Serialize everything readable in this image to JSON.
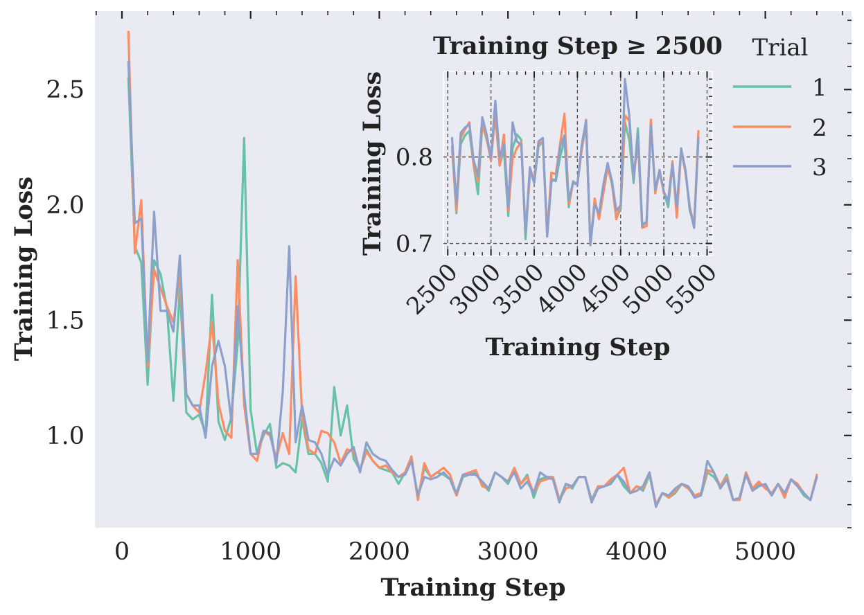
{
  "colors": {
    "background": "#eaeaf2",
    "trial_1": "#66c2a5",
    "trial_2": "#fc8d62",
    "trial_3": "#8da0cb",
    "grid": "#555555"
  },
  "chart_data": [
    {
      "type": "line",
      "title": "",
      "xlabel": "Training Step",
      "ylabel": "Training Loss",
      "xlim": [
        -210,
        5670
      ],
      "ylim": [
        0.6,
        2.84
      ],
      "xticks": [
        0,
        1000,
        2000,
        3000,
        4000,
        5000
      ],
      "xtick_labels": [
        "0",
        "1000",
        "2000",
        "3000",
        "4000",
        "5000"
      ],
      "yticks": [
        1.0,
        1.5,
        2.0,
        2.5
      ],
      "ytick_labels": [
        "1.0",
        "1.5",
        "2.0",
        "2.5"
      ],
      "grid": false,
      "x": [
        50,
        100,
        150,
        200,
        250,
        300,
        350,
        400,
        450,
        500,
        550,
        600,
        650,
        700,
        750,
        800,
        850,
        900,
        950,
        1000,
        1050,
        1100,
        1150,
        1200,
        1250,
        1300,
        1350,
        1400,
        1450,
        1500,
        1550,
        1600,
        1650,
        1700,
        1750,
        1800,
        1850,
        1900,
        1950,
        2000,
        2050,
        2100,
        2150,
        2200,
        2250,
        2300,
        2350,
        2400,
        2450,
        2500,
        2550,
        2600,
        2650,
        2700,
        2750,
        2800,
        2850,
        2900,
        2950,
        3000,
        3050,
        3100,
        3150,
        3200,
        3250,
        3300,
        3350,
        3400,
        3450,
        3500,
        3550,
        3600,
        3650,
        3700,
        3750,
        3800,
        3850,
        3900,
        3950,
        4000,
        4050,
        4100,
        4150,
        4200,
        4250,
        4300,
        4350,
        4400,
        4450,
        4500,
        4550,
        4600,
        4650,
        4700,
        4750,
        4800,
        4850,
        4900,
        4950,
        5000,
        5050,
        5100,
        5150,
        5200,
        5250,
        5300,
        5350,
        5400
      ],
      "series": [
        {
          "name": "1",
          "values": [
            2.55,
            1.82,
            1.75,
            1.22,
            1.76,
            1.7,
            1.55,
            1.15,
            1.64,
            1.1,
            1.07,
            1.09,
            1.01,
            1.61,
            1.06,
            0.98,
            1.08,
            1.4,
            2.29,
            1.11,
            0.92,
            1.0,
            1.05,
            0.86,
            0.88,
            0.87,
            0.84,
            1.07,
            0.92,
            0.92,
            0.88,
            0.8,
            1.21,
            1.0,
            1.13,
            0.9,
            0.85,
            0.94,
            0.89,
            0.86,
            0.85,
            0.84,
            0.79,
            0.84,
            0.9,
            0.73,
            0.86,
            0.82,
            0.84,
            0.83,
            0.81,
            0.74,
            0.82,
            0.83,
            0.84,
            0.79,
            0.76,
            0.84,
            0.82,
            0.79,
            0.85,
            0.79,
            0.83,
            0.73,
            0.81,
            0.82,
            0.82,
            0.72,
            0.79,
            0.77,
            0.82,
            0.82,
            0.72,
            0.78,
            0.78,
            0.8,
            0.83,
            0.78,
            0.75,
            0.78,
            0.76,
            0.83,
            0.7,
            0.75,
            0.73,
            0.75,
            0.79,
            0.78,
            0.74,
            0.74,
            0.84,
            0.82,
            0.78,
            0.83,
            0.72,
            0.73,
            0.84,
            0.77,
            0.79,
            0.78,
            0.74,
            0.79,
            0.74,
            0.81,
            0.78,
            0.74,
            0.72,
            0.82
          ]
        },
        {
          "name": "2",
          "values": [
            2.75,
            1.79,
            2.02,
            1.3,
            1.72,
            1.64,
            1.56,
            1.49,
            1.7,
            1.18,
            1.13,
            1.1,
            1.27,
            1.49,
            1.14,
            1.02,
            0.99,
            1.76,
            1.13,
            0.92,
            0.89,
            1.02,
            1.0,
            0.9,
            1.01,
            0.92,
            1.69,
            1.09,
            0.94,
            0.92,
            1.02,
            1.01,
            0.97,
            0.88,
            0.94,
            0.93,
            0.85,
            0.93,
            0.89,
            0.86,
            0.87,
            0.84,
            0.82,
            0.84,
            0.91,
            0.72,
            0.88,
            0.82,
            0.84,
            0.86,
            0.83,
            0.74,
            0.83,
            0.84,
            0.85,
            0.78,
            0.77,
            0.84,
            0.82,
            0.8,
            0.86,
            0.79,
            0.82,
            0.75,
            0.8,
            0.81,
            0.82,
            0.72,
            0.77,
            0.78,
            0.82,
            0.82,
            0.71,
            0.78,
            0.78,
            0.81,
            0.83,
            0.86,
            0.75,
            0.78,
            0.77,
            0.84,
            0.7,
            0.75,
            0.73,
            0.76,
            0.79,
            0.77,
            0.74,
            0.75,
            0.85,
            0.84,
            0.78,
            0.82,
            0.72,
            0.72,
            0.84,
            0.77,
            0.8,
            0.77,
            0.75,
            0.79,
            0.73,
            0.81,
            0.79,
            0.75,
            0.72,
            0.83
          ]
        },
        {
          "name": "3",
          "values": [
            2.62,
            1.92,
            1.94,
            1.32,
            1.97,
            1.54,
            1.54,
            1.45,
            1.78,
            1.18,
            1.13,
            1.13,
            0.99,
            1.3,
            1.41,
            1.3,
            1.06,
            1.56,
            1.18,
            0.92,
            0.92,
            1.02,
            1.01,
            0.88,
            1.19,
            1.82,
            0.97,
            1.13,
            0.98,
            0.97,
            0.92,
            0.83,
            0.9,
            0.87,
            0.92,
            0.95,
            0.84,
            0.97,
            0.92,
            0.9,
            0.89,
            0.85,
            0.82,
            0.83,
            0.89,
            0.74,
            0.82,
            0.81,
            0.82,
            0.84,
            0.81,
            0.75,
            0.83,
            0.83,
            0.83,
            0.8,
            0.77,
            0.84,
            0.82,
            0.8,
            0.84,
            0.77,
            0.8,
            0.75,
            0.84,
            0.82,
            0.81,
            0.71,
            0.79,
            0.78,
            0.82,
            0.82,
            0.71,
            0.77,
            0.78,
            0.79,
            0.83,
            0.8,
            0.75,
            0.76,
            0.78,
            0.84,
            0.69,
            0.75,
            0.74,
            0.77,
            0.79,
            0.78,
            0.73,
            0.74,
            0.89,
            0.84,
            0.77,
            0.81,
            0.72,
            0.73,
            0.83,
            0.76,
            0.78,
            0.79,
            0.74,
            0.79,
            0.75,
            0.81,
            0.78,
            0.75,
            0.72,
            0.82
          ]
        }
      ]
    },
    {
      "type": "line",
      "title": "Training Step ≥ 2500",
      "xlabel": "Training Step",
      "ylabel": "Training Loss",
      "xlim": [
        2450,
        5560
      ],
      "ylim": [
        0.686,
        0.899
      ],
      "xticks": [
        2500,
        3000,
        3500,
        4000,
        4500,
        5000,
        5500
      ],
      "xtick_labels": [
        "2500",
        "3000",
        "3500",
        "4000",
        "4500",
        "5000",
        "5500"
      ],
      "yticks": [
        0.7,
        0.8
      ],
      "ytick_labels": [
        "0.7",
        "0.8"
      ],
      "grid": true,
      "x": [
        2550,
        2600,
        2650,
        2700,
        2750,
        2800,
        2850,
        2900,
        2950,
        3000,
        3050,
        3100,
        3150,
        3200,
        3250,
        3300,
        3350,
        3400,
        3450,
        3500,
        3550,
        3600,
        3650,
        3700,
        3750,
        3800,
        3850,
        3900,
        3950,
        4000,
        4050,
        4100,
        4150,
        4200,
        4250,
        4300,
        4350,
        4400,
        4450,
        4500,
        4550,
        4600,
        4650,
        4700,
        4750,
        4800,
        4850,
        4900,
        4950,
        5000,
        5050,
        5100,
        5150,
        5200,
        5250,
        5300,
        5350,
        5400
      ],
      "series": [
        {
          "name": "1",
          "values": [
            0.81,
            0.735,
            0.815,
            0.825,
            0.83,
            0.79,
            0.757,
            0.838,
            0.82,
            0.8,
            0.847,
            0.79,
            0.808,
            0.732,
            0.81,
            0.826,
            0.82,
            0.705,
            0.785,
            0.77,
            0.812,
            0.818,
            0.71,
            0.775,
            0.772,
            0.8,
            0.82,
            0.742,
            0.772,
            0.768,
            0.81,
            0.835,
            0.7,
            0.748,
            0.73,
            0.76,
            0.79,
            0.768,
            0.73,
            0.74,
            0.84,
            0.82,
            0.77,
            0.833,
            0.722,
            0.725,
            0.838,
            0.762,
            0.782,
            0.76,
            0.742,
            0.792,
            0.735,
            0.808,
            0.785,
            0.738,
            0.722,
            0.822
          ]
        },
        {
          "name": "2",
          "values": [
            0.812,
            0.738,
            0.822,
            0.832,
            0.84,
            0.79,
            0.772,
            0.838,
            0.822,
            0.795,
            0.852,
            0.79,
            0.826,
            0.738,
            0.798,
            0.81,
            0.817,
            0.712,
            0.78,
            0.775,
            0.815,
            0.818,
            0.712,
            0.782,
            0.78,
            0.815,
            0.85,
            0.745,
            0.77,
            0.77,
            0.808,
            0.843,
            0.698,
            0.752,
            0.728,
            0.758,
            0.788,
            0.77,
            0.728,
            0.745,
            0.848,
            0.842,
            0.775,
            0.82,
            0.718,
            0.72,
            0.843,
            0.758,
            0.785,
            0.758,
            0.75,
            0.795,
            0.73,
            0.808,
            0.782,
            0.742,
            0.72,
            0.83
          ]
        },
        {
          "name": "3",
          "values": [
            0.822,
            0.745,
            0.828,
            0.834,
            0.838,
            0.796,
            0.778,
            0.846,
            0.826,
            0.798,
            0.865,
            0.8,
            0.815,
            0.742,
            0.84,
            0.818,
            0.814,
            0.712,
            0.788,
            0.77,
            0.818,
            0.822,
            0.708,
            0.772,
            0.774,
            0.812,
            0.825,
            0.75,
            0.77,
            0.768,
            0.814,
            0.842,
            0.698,
            0.745,
            0.735,
            0.768,
            0.793,
            0.772,
            0.738,
            0.744,
            0.89,
            0.848,
            0.775,
            0.826,
            0.72,
            0.725,
            0.836,
            0.762,
            0.785,
            0.76,
            0.748,
            0.792,
            0.742,
            0.81,
            0.785,
            0.74,
            0.718,
            0.822
          ]
        }
      ]
    }
  ],
  "legend": {
    "title": "Trial",
    "placement": "top-right",
    "entries": [
      "1",
      "2",
      "3"
    ]
  }
}
